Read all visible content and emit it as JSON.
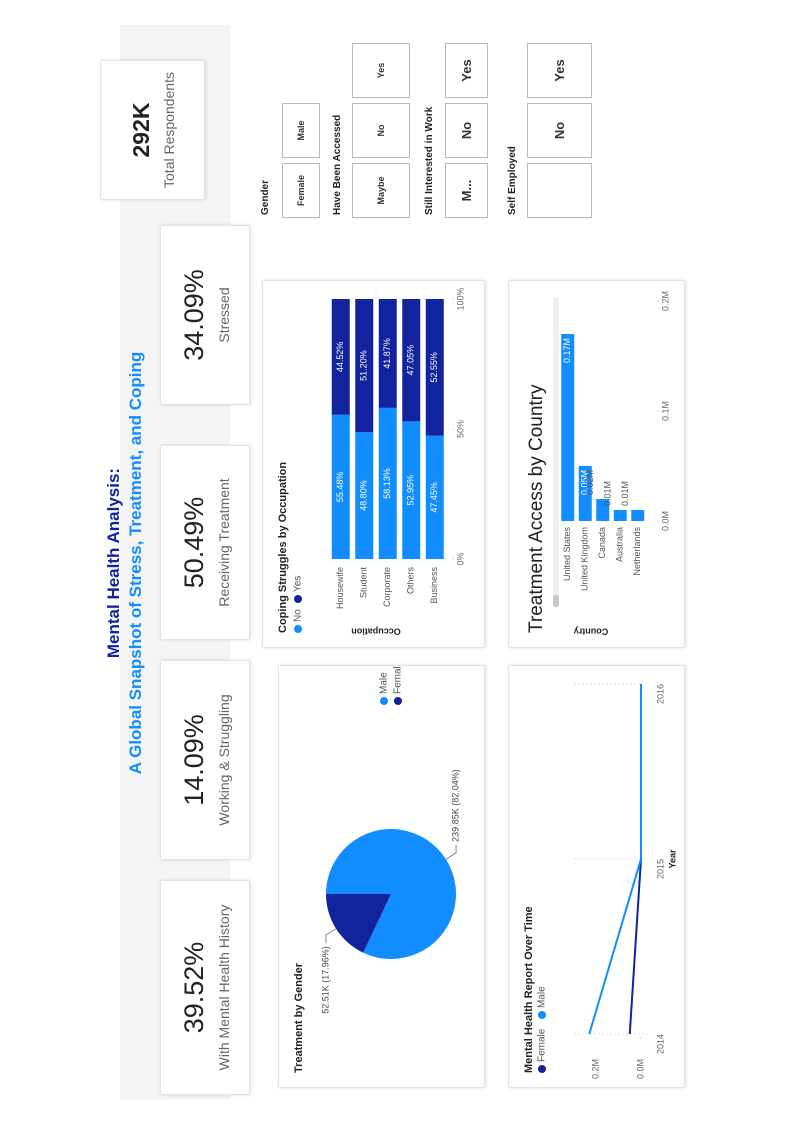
{
  "header": {
    "title": "Mental Health Analysis:",
    "subtitle": "A Global Snapshot of Stress, Treatment, and Coping"
  },
  "kpis": [
    {
      "value": "39.52%",
      "label": "With Mental Health History"
    },
    {
      "value": "14.09%",
      "label": "Working & Struggling"
    },
    {
      "value": "50.49%",
      "label": "Receiving Treatment"
    },
    {
      "value": "34.09%",
      "label": "Stressed"
    },
    {
      "value": "292K",
      "label": "Total Respondents"
    }
  ],
  "slicers": [
    {
      "title": "Gender",
      "options": [
        "Female",
        "Male"
      ]
    },
    {
      "title": "Have Been Accessed",
      "options": [
        "Maybe",
        "No",
        "Yes"
      ]
    },
    {
      "title": "Still Interested in Work",
      "options": [
        "M...",
        "No",
        "Yes"
      ]
    },
    {
      "title": "Self Employed",
      "options": [
        "No",
        "Yes"
      ]
    }
  ],
  "chart_data": [
    {
      "type": "pie",
      "title": "Treatment by Gender",
      "categories": [
        "Male",
        "Female"
      ],
      "values": [
        239.85,
        52.51
      ],
      "value_labels": [
        "239.85K (82.04%)",
        "52.51K (17.96%)"
      ],
      "colors": [
        "#118dff",
        "#12239e"
      ]
    },
    {
      "type": "bar",
      "orientation": "horizontal",
      "title": "Coping Struggles by Occupation",
      "ylabel": "Occupation",
      "categories": [
        "Housewife",
        "Student",
        "Corporate",
        "Others",
        "Business"
      ],
      "series": [
        {
          "name": "No",
          "color": "#118dff",
          "values": [
            55.48,
            48.8,
            58.13,
            52.95,
            47.45
          ],
          "value_labels": [
            "55.48%",
            "48.80%",
            "58.13%",
            "52.95%",
            "47.45%"
          ]
        },
        {
          "name": "Yes",
          "color": "#12239e",
          "values": [
            44.52,
            51.2,
            41.87,
            47.05,
            52.55
          ],
          "value_labels": [
            "44.52%",
            "51.20%",
            "41.87%",
            "47.05%",
            "52.55%"
          ]
        }
      ],
      "xlim": [
        0,
        100
      ],
      "xticks": [
        {
          "value": 0,
          "label": "0%"
        },
        {
          "value": 50,
          "label": "50%"
        },
        {
          "value": 100,
          "label": "100%"
        }
      ]
    },
    {
      "type": "line",
      "title": "Mental Health Report Over Time",
      "xlabel": "Year",
      "categories": [
        "2014",
        "2015",
        "2016"
      ],
      "series": [
        {
          "name": "Female",
          "color": "#12239e",
          "values": [
            0.05,
            0.0,
            null
          ]
        },
        {
          "name": "Male",
          "color": "#118dff",
          "values": [
            0.23,
            0.0,
            0.0
          ]
        }
      ],
      "ylim": [
        0,
        0.28
      ],
      "yticks": [
        {
          "value": 0,
          "label": "0.0M"
        },
        {
          "value": 0.2,
          "label": "0.2M"
        }
      ]
    },
    {
      "type": "bar",
      "orientation": "horizontal",
      "title": "Treatment Access by Country",
      "ylabel": "Country",
      "categories": [
        "United States",
        "United Kingdom",
        "Canada",
        "Australia",
        "Netherlands"
      ],
      "values": [
        0.17,
        0.05,
        0.02,
        0.01,
        0.01
      ],
      "value_labels": [
        "0.17M",
        "0.05M",
        "0.02M",
        "0.01M",
        "0.01M"
      ],
      "color": "#118dff",
      "xlim": [
        0,
        0.2
      ],
      "xticks": [
        {
          "value": 0,
          "label": "0.0M"
        },
        {
          "value": 0.1,
          "label": "0.1M"
        },
        {
          "value": 0.2,
          "label": "0.2M"
        }
      ]
    }
  ]
}
